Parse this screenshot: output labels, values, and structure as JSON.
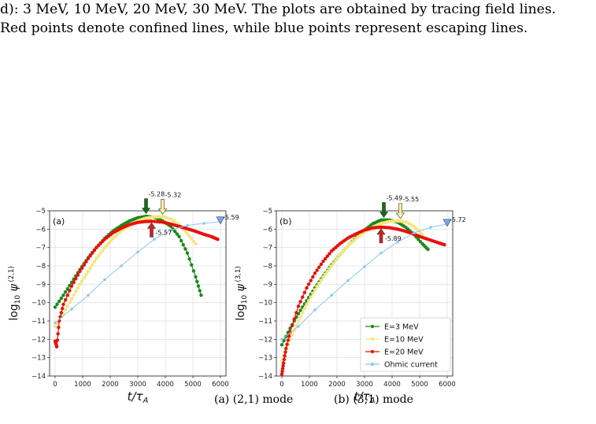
{
  "caption": {
    "line1": "d): 3 MeV, 10 MeV, 20 MeV, 30 MeV. The plots are obtained by tracing field lines.",
    "line2": "Red points denote confined lines, while blue points represent escaping lines."
  },
  "subcaptions": [
    "(a) (2,1) mode",
    "(b) (3,1) mode"
  ],
  "colors": {
    "E3": "#1a8a1a",
    "E10": "#f5e680",
    "E20": "#e8100a",
    "ohmic": "#8ec8ec",
    "marker_dark": "#0e6e0e",
    "marker_yellow": "#fff0a0",
    "marker_red": "#d02020",
    "marker_blue": "#7fa6dc"
  },
  "chart_data": [
    {
      "type": "line",
      "panel_label": "(a)",
      "xlabel": "t/τA",
      "ylabel": "log10 ψ(2,1)",
      "xlim": [
        -200,
        6200
      ],
      "ylim": [
        -14,
        -5
      ],
      "xticks": [
        0,
        1000,
        2000,
        3000,
        4000,
        5000,
        6000
      ],
      "yticks": [
        -5,
        -6,
        -7,
        -8,
        -9,
        -10,
        -11,
        -12,
        -13,
        -14
      ],
      "grid": true,
      "series": [
        {
          "name": "E=3 MeV",
          "color": "#1a8a1a",
          "x": [
            0,
            300,
            600,
            900,
            1200,
            1500,
            1800,
            2100,
            2400,
            2700,
            3000,
            3300,
            3600,
            3900,
            4200,
            4500,
            4800,
            5100,
            5300
          ],
          "y": [
            -10.25,
            -9.6,
            -8.9,
            -8.2,
            -7.55,
            -7.0,
            -6.5,
            -6.1,
            -5.8,
            -5.55,
            -5.38,
            -5.3,
            -5.35,
            -5.55,
            -5.85,
            -6.4,
            -7.3,
            -8.6,
            -9.6
          ]
        },
        {
          "name": "E=10 MeV",
          "color": "#f5e680",
          "x": [
            0,
            300,
            600,
            900,
            1200,
            1500,
            1800,
            2100,
            2400,
            2700,
            3000,
            3300,
            3600,
            3900,
            4200,
            4500,
            4800,
            5100
          ],
          "y": [
            -11.3,
            -10.6,
            -9.8,
            -9.0,
            -8.3,
            -7.6,
            -7.0,
            -6.5,
            -6.1,
            -5.8,
            -5.55,
            -5.4,
            -5.33,
            -5.32,
            -5.45,
            -5.75,
            -6.25,
            -6.8
          ]
        },
        {
          "name": "E=20 MeV",
          "color": "#e8100a",
          "x": [
            0,
            60,
            150,
            300,
            600,
            900,
            1200,
            1500,
            1800,
            2100,
            2400,
            2700,
            3000,
            3300,
            3500,
            3900,
            4200,
            4500,
            4800,
            5100,
            5400,
            5700,
            5900
          ],
          "y": [
            -12.1,
            -12.4,
            -11.0,
            -10.1,
            -9.1,
            -8.3,
            -7.6,
            -7.0,
            -6.55,
            -6.2,
            -5.95,
            -5.75,
            -5.63,
            -5.58,
            -5.57,
            -5.62,
            -5.72,
            -5.85,
            -5.98,
            -6.12,
            -6.28,
            -6.42,
            -6.55
          ]
        },
        {
          "name": "Ohmic current",
          "color": "#8ec8ec",
          "x": [
            0,
            600,
            1200,
            1800,
            2400,
            3000,
            3600,
            4200,
            4800,
            5400,
            6000
          ],
          "y": [
            -11.1,
            -10.35,
            -9.6,
            -8.75,
            -8.0,
            -7.25,
            -6.55,
            -6.05,
            -5.8,
            -5.68,
            -5.59
          ]
        }
      ],
      "markers": [
        {
          "label": "-5.28",
          "x": 3300,
          "y": -5.28,
          "kind": "down",
          "color": "#0e6e0e"
        },
        {
          "label": "-5.32",
          "x": 3900,
          "y": -5.32,
          "kind": "down",
          "color": "#fff0a0"
        },
        {
          "label": "-5.57",
          "x": 3500,
          "y": -5.57,
          "kind": "up",
          "color": "#d02020"
        },
        {
          "label": "-5.59",
          "x": 6000,
          "y": -5.59,
          "kind": "triangle",
          "color": "#7fa6dc"
        }
      ]
    },
    {
      "type": "line",
      "panel_label": "(b)",
      "xlabel": "t/τA",
      "ylabel": "log10 ψ(3,1)",
      "xlim": [
        -200,
        6200
      ],
      "ylim": [
        -14,
        -5
      ],
      "xticks": [
        0,
        1000,
        2000,
        3000,
        4000,
        5000,
        6000
      ],
      "yticks": [
        -5,
        -6,
        -7,
        -8,
        -9,
        -10,
        -11,
        -12,
        -13,
        -14
      ],
      "grid": true,
      "legend": [
        "E=3 MeV",
        "E=10 MeV",
        "E=20 MeV",
        "Ohmic current"
      ],
      "series": [
        {
          "name": "E=3 MeV",
          "color": "#1a8a1a",
          "x": [
            0,
            300,
            600,
            900,
            1200,
            1500,
            1800,
            2100,
            2400,
            2700,
            3000,
            3300,
            3600,
            3900,
            4200,
            4500,
            4800,
            5100,
            5300
          ],
          "y": [
            -12.3,
            -11.4,
            -10.6,
            -9.9,
            -9.2,
            -8.55,
            -7.95,
            -7.4,
            -6.9,
            -6.45,
            -6.05,
            -5.7,
            -5.5,
            -5.5,
            -5.62,
            -5.9,
            -6.3,
            -6.8,
            -7.1
          ]
        },
        {
          "name": "E=10 MeV",
          "color": "#f5e680",
          "x": [
            0,
            300,
            600,
            900,
            1200,
            1500,
            1800,
            2100,
            2400,
            2700,
            3000,
            3300,
            3600,
            3900,
            4200,
            4500,
            4800,
            5100
          ],
          "y": [
            -13.2,
            -12.0,
            -11.0,
            -10.1,
            -9.3,
            -8.6,
            -8.0,
            -7.4,
            -6.9,
            -6.5,
            -6.15,
            -5.9,
            -5.7,
            -5.58,
            -5.55,
            -5.6,
            -5.85,
            -6.3
          ]
        },
        {
          "name": "E=20 MeV",
          "color": "#e8100a",
          "x": [
            0,
            60,
            150,
            300,
            600,
            900,
            1200,
            1500,
            1800,
            2100,
            2400,
            2700,
            3000,
            3300,
            3600,
            3900,
            4200,
            4500,
            4800,
            5100,
            5400,
            5700,
            5900
          ],
          "y": [
            -13.9,
            -13.3,
            -12.5,
            -11.6,
            -10.2,
            -9.2,
            -8.4,
            -7.75,
            -7.2,
            -6.8,
            -6.48,
            -6.25,
            -6.05,
            -5.93,
            -5.89,
            -5.92,
            -6.0,
            -6.12,
            -6.28,
            -6.45,
            -6.6,
            -6.75,
            -6.85
          ]
        },
        {
          "name": "Ohmic current",
          "color": "#8ec8ec",
          "x": [
            0,
            600,
            1200,
            1800,
            2400,
            3000,
            3600,
            4200,
            4800,
            5400,
            6000
          ],
          "y": [
            -12.0,
            -11.3,
            -10.4,
            -9.6,
            -8.8,
            -8.05,
            -7.3,
            -6.7,
            -6.2,
            -5.9,
            -5.72
          ]
        }
      ],
      "markers": [
        {
          "label": "-5.49",
          "x": 3700,
          "y": -5.49,
          "kind": "down",
          "color": "#0e6e0e"
        },
        {
          "label": "-5.55",
          "x": 4300,
          "y": -5.55,
          "kind": "down",
          "color": "#fff0a0"
        },
        {
          "label": "-5.89",
          "x": 3600,
          "y": -5.89,
          "kind": "up",
          "color": "#d02020"
        },
        {
          "label": "-5.72",
          "x": 6000,
          "y": -5.72,
          "kind": "triangle",
          "color": "#7fa6dc"
        }
      ]
    }
  ]
}
